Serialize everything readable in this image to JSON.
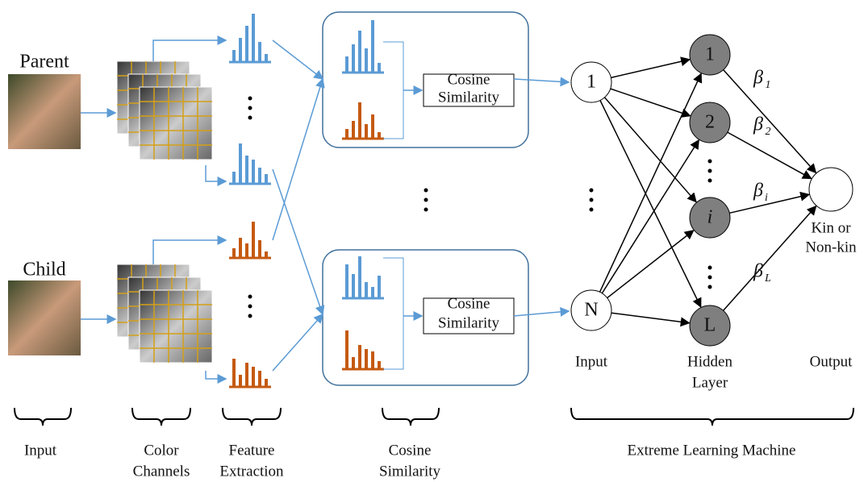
{
  "input": {
    "parent": "Parent",
    "child": "Child"
  },
  "cosine_boxes": [
    {
      "lines": [
        "Cosine",
        "Similarity"
      ]
    },
    {
      "lines": [
        "Cosine",
        "Similarity"
      ]
    }
  ],
  "input_nodes": [
    "1",
    "N"
  ],
  "hidden_nodes": [
    "1",
    "2",
    "i",
    "L"
  ],
  "weights": [
    {
      "symbol": "β",
      "sub": "1"
    },
    {
      "symbol": "β",
      "sub": "2"
    },
    {
      "symbol": "β",
      "sub": "i"
    },
    {
      "symbol": "β",
      "sub": "L"
    }
  ],
  "output_node": [
    "Kin or",
    "Non-kin"
  ],
  "layer_labels": {
    "input": "Input",
    "hidden": [
      "Hidden",
      "Layer"
    ],
    "output": "Output"
  },
  "stage_labels": [
    [
      "Input"
    ],
    [
      "Color",
      "Channels"
    ],
    [
      "Feature",
      "Extraction"
    ],
    [
      "Cosine",
      "Similarity"
    ],
    [
      "Extreme Learning Machine"
    ]
  ]
}
